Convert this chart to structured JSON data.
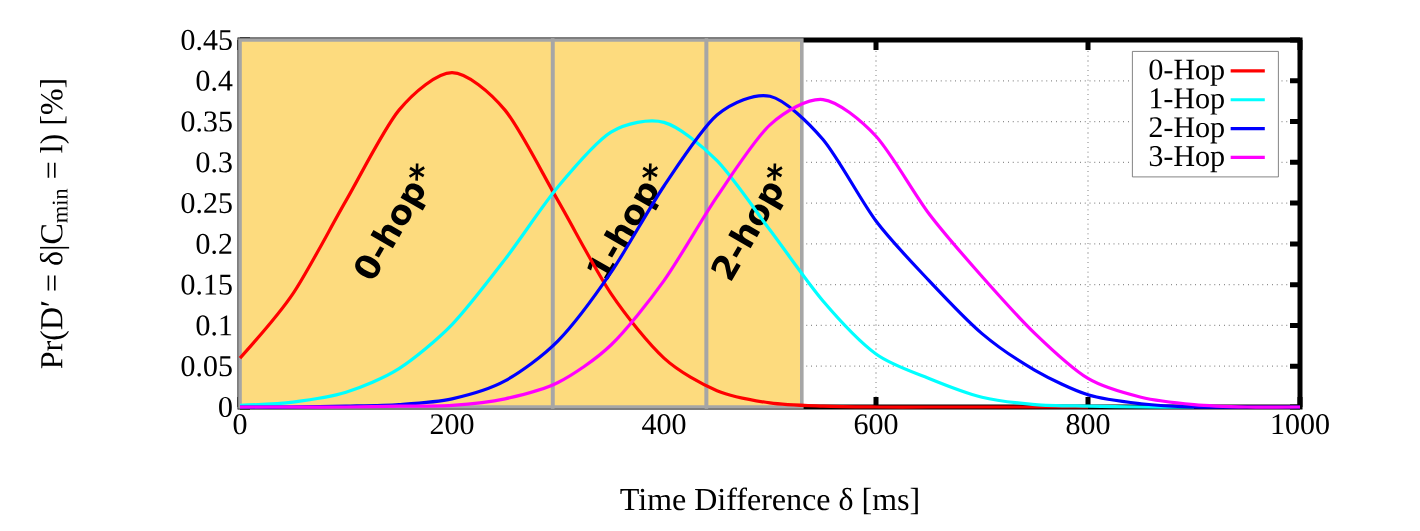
{
  "chart_data": {
    "type": "line",
    "xlabel": "Time Difference δ [ms]",
    "ylabel": "Pr(D′ = δ|C$_{min}$ = l) [%]",
    "x": [
      0,
      50,
      100,
      150,
      200,
      250,
      300,
      350,
      400,
      450,
      500,
      550,
      600,
      650,
      700,
      750,
      800,
      850,
      900,
      950,
      1000
    ],
    "series": [
      {
        "name": "0-Hop",
        "color": "#ff0000",
        "values": [
          0.06,
          0.139,
          0.253,
          0.364,
          0.41,
          0.364,
          0.253,
          0.139,
          0.06,
          0.02,
          0.005,
          0.001,
          0,
          0,
          0,
          0,
          0,
          null,
          null,
          null,
          null
        ]
      },
      {
        "name": "1-Hop",
        "color": "#00ffff",
        "values": [
          0.002,
          0.006,
          0.018,
          0.047,
          0.101,
          0.181,
          0.27,
          0.337,
          0.349,
          0.302,
          0.217,
          0.13,
          0.065,
          0.035,
          0.012,
          0.003,
          0.001,
          0,
          0,
          null,
          null
        ]
      },
      {
        "name": "2-Hop",
        "color": "#0000ff",
        "values": [
          0,
          0,
          0.001,
          0.003,
          0.01,
          0.032,
          0.081,
          0.165,
          0.271,
          0.358,
          0.381,
          0.328,
          0.228,
          0.155,
          0.09,
          0.045,
          0.015,
          0.004,
          0,
          0,
          0
        ]
      },
      {
        "name": "3-Hop",
        "color": "#ff00ff",
        "values": [
          0,
          0,
          0,
          0.001,
          0.002,
          0.01,
          0.03,
          0.076,
          0.155,
          0.258,
          0.346,
          0.377,
          0.332,
          0.237,
          0.16,
          0.09,
          0.035,
          0.012,
          0.003,
          0,
          0
        ]
      }
    ],
    "xlim": [
      0,
      1000
    ],
    "xticks": [
      0,
      200,
      400,
      600,
      800,
      1000
    ],
    "ylim": [
      0,
      0.45
    ],
    "yticks": [
      0,
      0.05,
      0.1,
      0.15,
      0.2,
      0.25,
      0.3,
      0.35,
      0.4,
      0.45
    ],
    "bands": [
      {
        "axis": "x",
        "from": 0,
        "to": 295,
        "label": "0-hop*",
        "color": "#fddb7e"
      },
      {
        "axis": "x",
        "from": 295,
        "to": 440,
        "label": "1-hop*",
        "color": "#fddb7e"
      },
      {
        "axis": "x",
        "from": 440,
        "to": 530,
        "label": "2-hop*",
        "color": "#fddb7e"
      }
    ],
    "grid": true,
    "legend": "top right",
    "line_style": "solid",
    "marker": "none"
  }
}
